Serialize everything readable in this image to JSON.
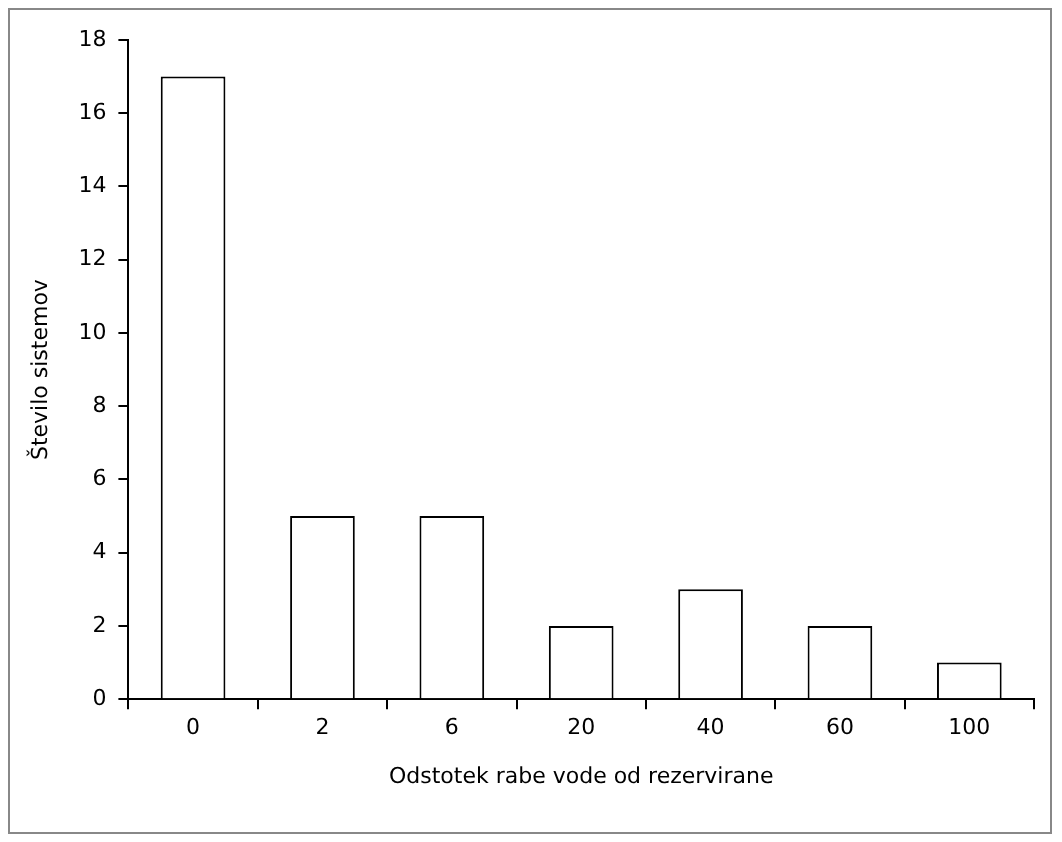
{
  "chart_data": {
    "type": "bar",
    "xlabel": "Odstotek rabe vode od rezervirane",
    "ylabel": "Število sistemov",
    "categories": [
      "0",
      "2",
      "6",
      "20",
      "40",
      "60",
      "100"
    ],
    "values": [
      17,
      5,
      5,
      2,
      3,
      2,
      1
    ],
    "color": "#ffffff",
    "ylim": [
      0,
      18
    ],
    "yticks": [
      0,
      2,
      4,
      6,
      8,
      10,
      12,
      14,
      16,
      18
    ],
    "grid": false,
    "legend": false
  }
}
